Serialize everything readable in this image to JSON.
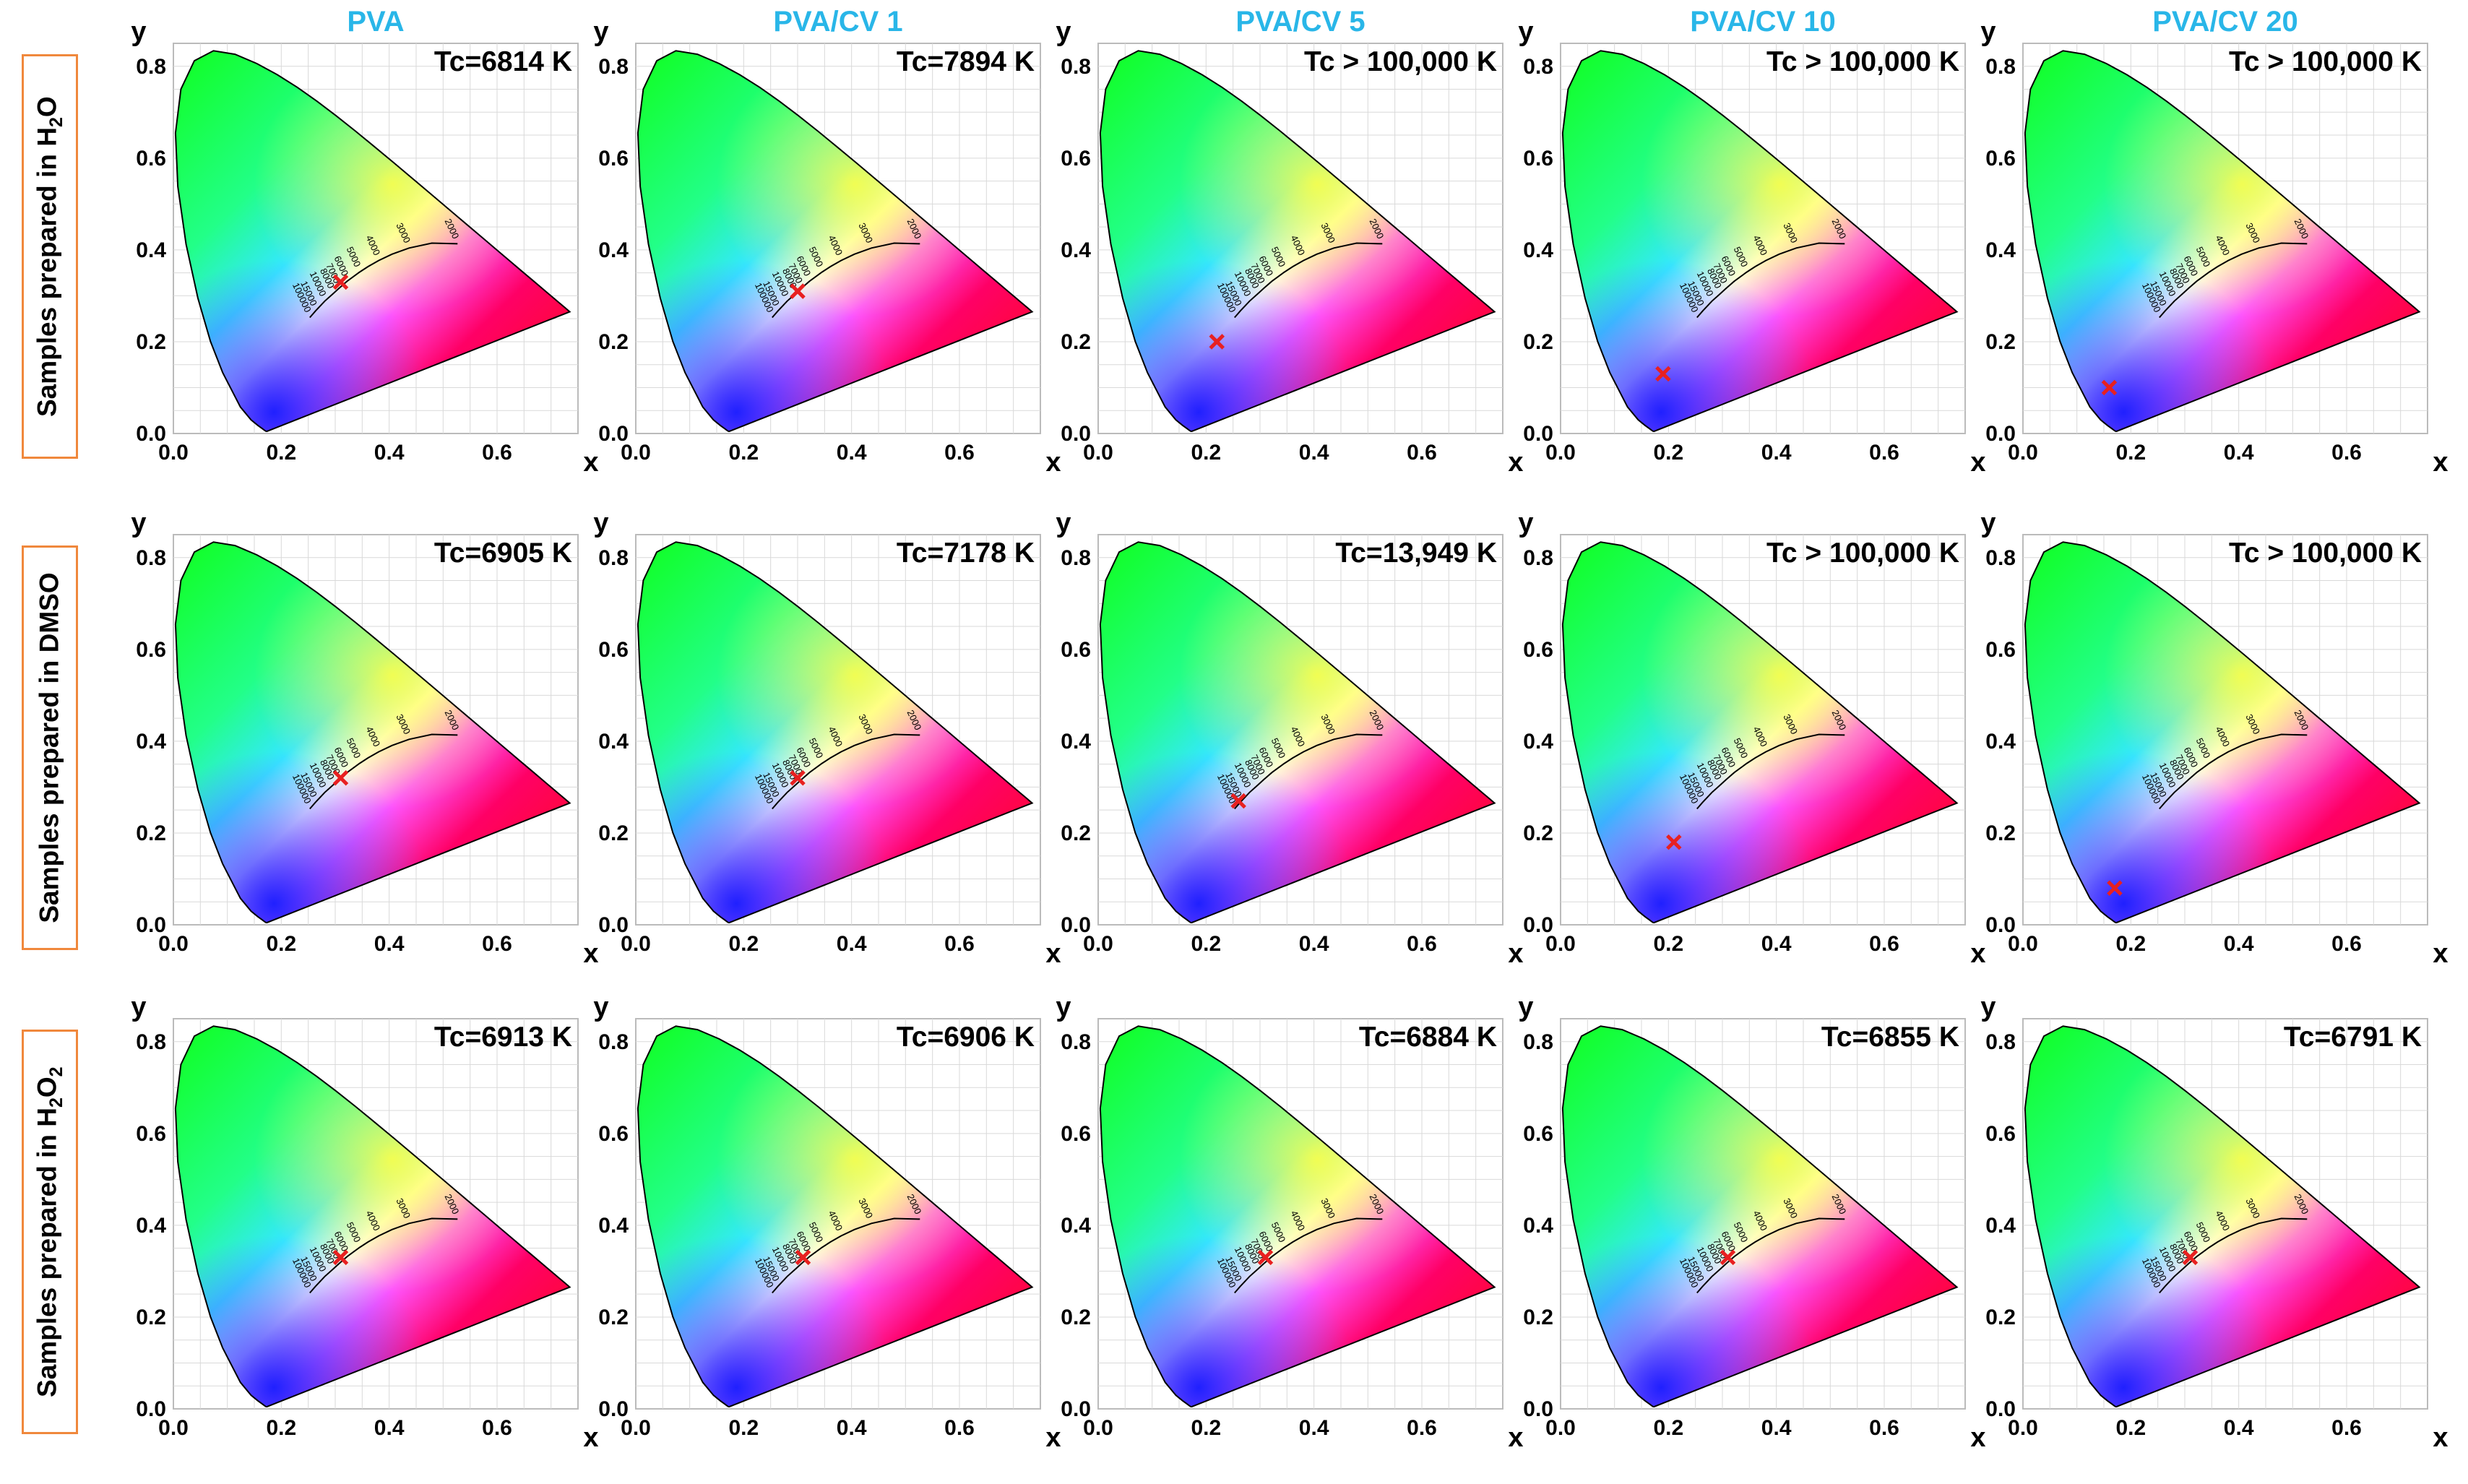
{
  "column_titles": [
    "PVA",
    "PVA/CV 1",
    "PVA/CV 5",
    "PVA/CV 10",
    "PVA/CV 20"
  ],
  "row_labels": [
    {
      "prefix": "Samples prepared in H",
      "sub": "2",
      "suffix": "O"
    },
    {
      "prefix": "Samples prepared in DMSO",
      "sub": "",
      "suffix": ""
    },
    {
      "prefix": "Samples prepared in H",
      "sub": "2",
      "suffix": "O",
      "sub2": "2"
    }
  ],
  "colors": {
    "title_blue": "#29b6e8",
    "label_border": "#f0883c",
    "marker": "#e82020",
    "grid": "#d9d9d9"
  },
  "chart_data": {
    "type": "scatter",
    "subtype": "CIE 1931 chromaticity diagram grid (3 rows x 5 columns)",
    "xlabel": "x",
    "ylabel": "y",
    "xlim": [
      0,
      0.75
    ],
    "ylim": [
      0,
      0.85
    ],
    "xticks": [
      "0.0",
      "0.2",
      "0.4",
      "0.6"
    ],
    "yticks": [
      "0.0",
      "0.2",
      "0.4",
      "0.6",
      "0.8"
    ],
    "planckian_locus_labels": [
      "2000",
      "3000",
      "4000",
      "5000",
      "6000",
      "7000",
      "8000",
      "10000",
      "15000",
      "100000"
    ],
    "rows": [
      {
        "label": "Samples prepared in H2O",
        "panels": [
          {
            "column": "PVA",
            "tc": "Tc=6814 K",
            "x": 0.31,
            "y": 0.33
          },
          {
            "column": "PVA/CV 1",
            "tc": "Tc=7894 K",
            "x": 0.3,
            "y": 0.31
          },
          {
            "column": "PVA/CV 5",
            "tc": "Tc > 100,000 K",
            "x": 0.22,
            "y": 0.2
          },
          {
            "column": "PVA/CV 10",
            "tc": "Tc > 100,000 K",
            "x": 0.19,
            "y": 0.13
          },
          {
            "column": "PVA/CV 20",
            "tc": "Tc > 100,000 K",
            "x": 0.16,
            "y": 0.1
          }
        ]
      },
      {
        "label": "Samples prepared in DMSO",
        "panels": [
          {
            "column": "PVA",
            "tc": "Tc=6905 K",
            "x": 0.31,
            "y": 0.32
          },
          {
            "column": "PVA/CV 1",
            "tc": "Tc=7178 K",
            "x": 0.3,
            "y": 0.32
          },
          {
            "column": "PVA/CV 5",
            "tc": "Tc=13,949 K",
            "x": 0.26,
            "y": 0.27
          },
          {
            "column": "PVA/CV 10",
            "tc": "Tc > 100,000 K",
            "x": 0.21,
            "y": 0.18
          },
          {
            "column": "PVA/CV 20",
            "tc": "Tc > 100,000 K",
            "x": 0.17,
            "y": 0.08
          }
        ]
      },
      {
        "label": "Samples prepared in H2O2",
        "panels": [
          {
            "column": "PVA",
            "tc": "Tc=6913 K",
            "x": 0.31,
            "y": 0.33
          },
          {
            "column": "PVA/CV 1",
            "tc": "Tc=6906 K",
            "x": 0.31,
            "y": 0.33
          },
          {
            "column": "PVA/CV 5",
            "tc": "Tc=6884 K",
            "x": 0.31,
            "y": 0.33
          },
          {
            "column": "PVA/CV 10",
            "tc": "Tc=6855 K",
            "x": 0.31,
            "y": 0.33
          },
          {
            "column": "PVA/CV 20",
            "tc": "Tc=6791 K",
            "x": 0.31,
            "y": 0.33
          }
        ]
      }
    ]
  }
}
